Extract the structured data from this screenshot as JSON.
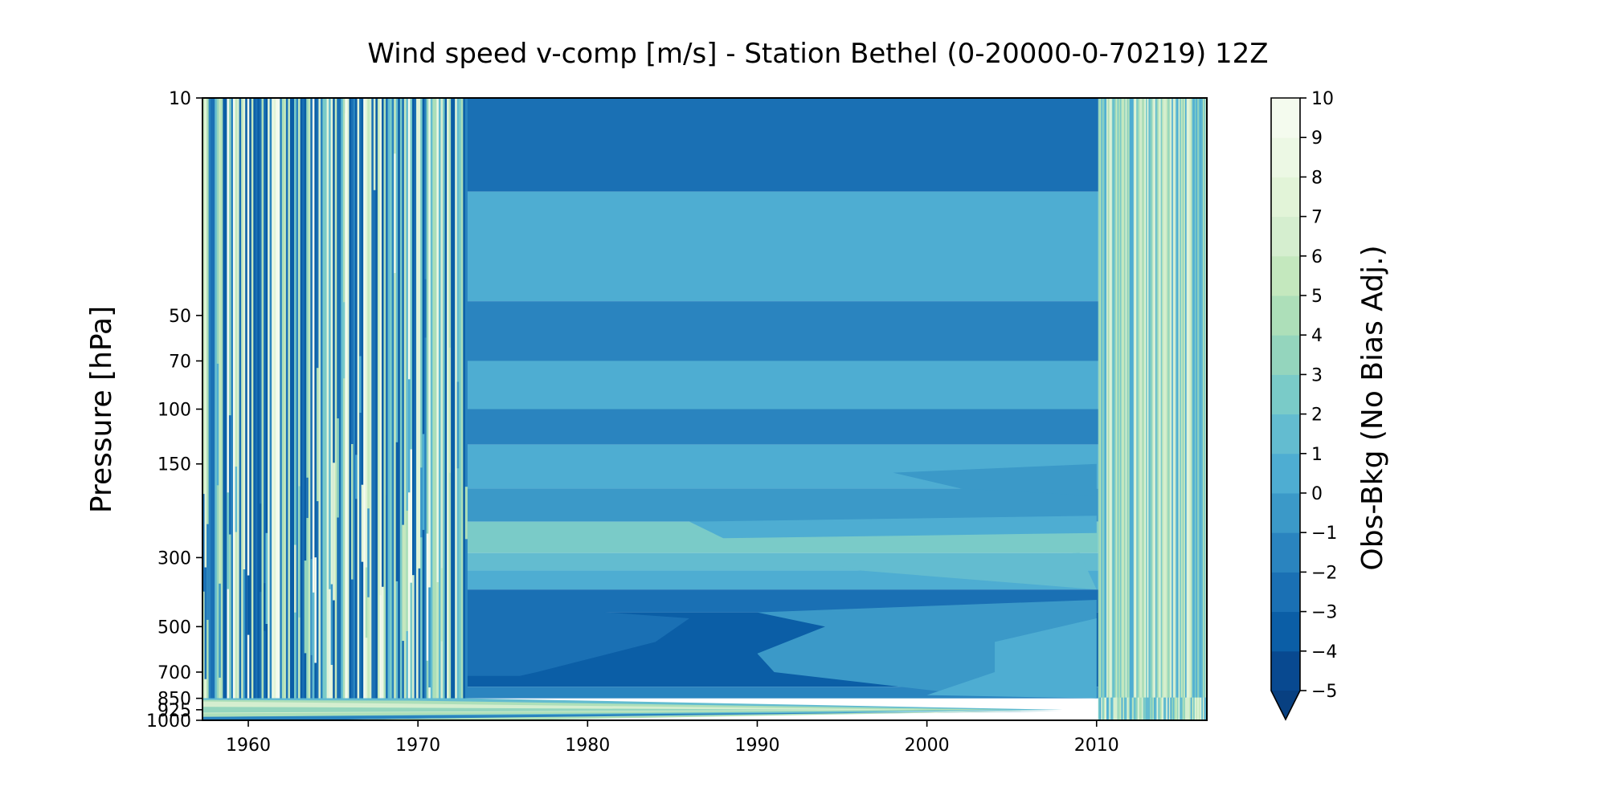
{
  "chart_data": {
    "type": "heatmap",
    "title": "Wind speed v-comp [m/s] - Station Bethel (0-20000-0-70219) 12Z",
    "xlabel": "",
    "ylabel": "Pressure [hPa]",
    "colorbar_label": "Obs-Bkg (No Bias Adj.)",
    "xlim": [
      1957.3,
      2016.5
    ],
    "ylim": [
      1000,
      10
    ],
    "y_scale": "log",
    "x_ticks": [
      1960,
      1970,
      1980,
      1990,
      2000,
      2010
    ],
    "y_ticks": [
      10,
      50,
      70,
      100,
      150,
      300,
      500,
      700,
      850,
      925,
      1000
    ],
    "colorbar": {
      "min": -5,
      "max": 10,
      "step": 1,
      "extend": "min",
      "ticks": [
        10,
        9,
        8,
        7,
        6,
        5,
        4,
        3,
        2,
        1,
        0,
        -1,
        -2,
        -3,
        -4,
        -5
      ],
      "colormap": "GnBu_r",
      "colors": [
        "#084990",
        "#0b5ea6",
        "#1a70b4",
        "#2a84bf",
        "#3b99c8",
        "#4eadd2",
        "#63bcd0",
        "#7acbc8",
        "#94d5bd",
        "#addfb9",
        "#c4e8be",
        "#d5eecf",
        "#e2f4d8",
        "#ecf8e4",
        "#f4fbee"
      ],
      "under_color": "#084081"
    },
    "regions": [
      {
        "x_range": [
          1957.3,
          1972.8
        ],
        "p_range": [
          1000,
          10
        ],
        "pattern": "dense alternating bands of values from -5 to 10 (per-ascent variability)"
      },
      {
        "x_range": [
          1972.8,
          2010.1
        ],
        "p_range": [
          850,
          10
        ],
        "pattern": "smooth interpolated field, mostly -3 to 2"
      },
      {
        "x_range": [
          2010.1,
          2016.5
        ],
        "p_range": [
          1000,
          10
        ],
        "pattern": "dense alternating bands of values from 0 to 8"
      },
      {
        "x_range": [
          1957.3,
          2010.1
        ],
        "p_range": [
          1000,
          850
        ],
        "pattern": "wedge of values 1 to 6 tapering toward 2008 at 925 hPa"
      }
    ]
  }
}
